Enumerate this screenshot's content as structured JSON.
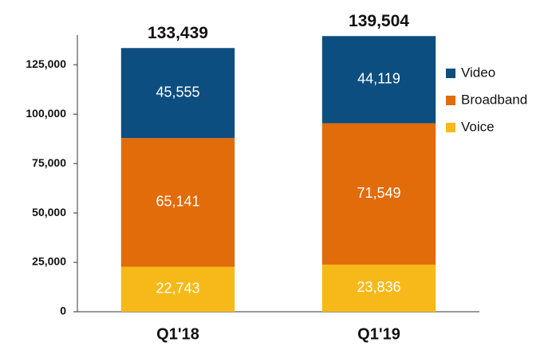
{
  "chart_data": {
    "type": "stacked_bar",
    "categories": [
      "Q1'18",
      "Q1'19"
    ],
    "series": [
      {
        "name": "Voice",
        "color": "#f7b919",
        "values": [
          22743,
          23836
        ],
        "value_labels": [
          "22,743",
          "23,836"
        ]
      },
      {
        "name": "Broadband",
        "color": "#e26b0a",
        "values": [
          65141,
          71549
        ],
        "value_labels": [
          "65,141",
          "71,549"
        ]
      },
      {
        "name": "Video",
        "color": "#0d4e80",
        "values": [
          45555,
          44119
        ],
        "value_labels": [
          "45,555",
          "44,119"
        ]
      }
    ],
    "totals": {
      "values": [
        133439,
        139504
      ],
      "value_labels": [
        "133,439",
        "139,504"
      ]
    },
    "ylim": [
      0,
      140000
    ],
    "yticks": [
      0,
      {
        "value": 25000,
        "label": "25,000"
      },
      {
        "value": 50000,
        "label": "50,000"
      },
      {
        "value": 75000,
        "label": "75,000"
      },
      {
        "value": 100000,
        "label": "100,000"
      },
      {
        "value": 125000,
        "label": "125,000"
      }
    ],
    "legend": "right"
  }
}
